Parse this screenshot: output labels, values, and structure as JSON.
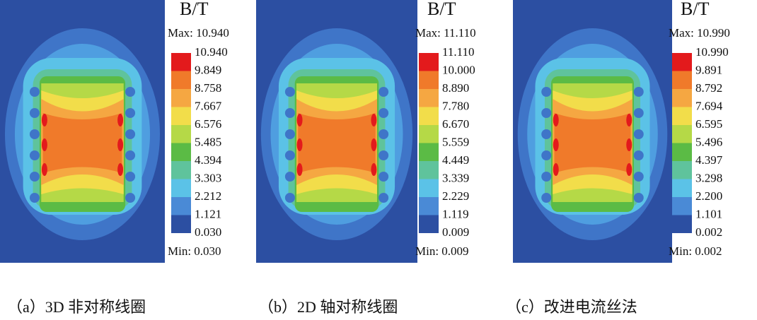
{
  "panels": [
    {
      "unit": "B/T",
      "max": "Max: 10.940",
      "levels": [
        "10.940",
        "9.849",
        "8.758",
        "7.667",
        "6.576",
        "5.485",
        "4.394",
        "3.303",
        "2.212",
        "1.121",
        "0.030"
      ],
      "min": "Min: 0.030",
      "caption": "（a）3D 非对称线圈"
    },
    {
      "unit": "B/T",
      "max": "Max: 11.110",
      "levels": [
        "11.110",
        "10.000",
        "8.890",
        "7.780",
        "6.670",
        "5.559",
        "4.449",
        "3.339",
        "2.229",
        "1.119",
        "0.009"
      ],
      "min": "Min: 0.009",
      "caption": "（b）2D 轴对称线圈"
    },
    {
      "unit": "B/T",
      "max": "Max: 10.990",
      "levels": [
        "10.990",
        "9.891",
        "8.792",
        "7.694",
        "6.595",
        "5.496",
        "4.397",
        "3.298",
        "2.200",
        "1.101",
        "0.002"
      ],
      "min": "Min: 0.002",
      "caption": "（c）改进电流丝法"
    }
  ]
}
